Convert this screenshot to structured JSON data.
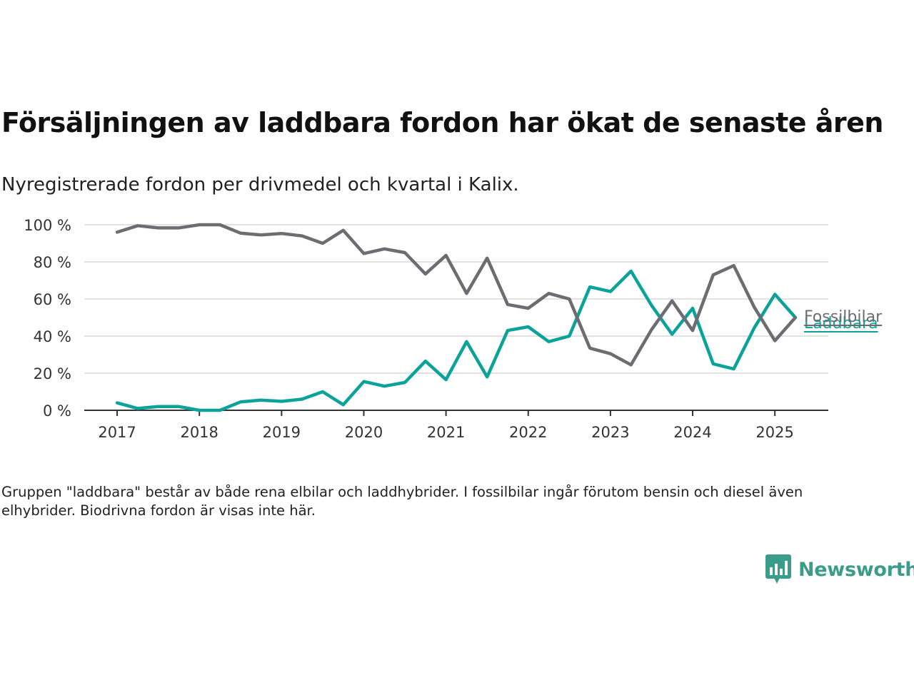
{
  "title": "Försäljningen av laddbara fordon har ökat de senaste åren",
  "subtitle": "Nyregistrerade fordon per drivmedel och kvartal i Kalix.",
  "note": "Gruppen \"laddbara\" består av både rena elbilar och laddhybrider. I fossilbilar ingår förutom bensin och diesel även elhybrider. Biodrivna fordon är visas inte här.",
  "brand": {
    "name": "Newsworthy",
    "icon": "newsworthy-logo-icon",
    "color": "#3c9c8c"
  },
  "chart_data": {
    "type": "line",
    "ylim": [
      0,
      100
    ],
    "yticks": [
      0,
      20,
      40,
      60,
      80,
      100
    ],
    "ytick_labels": [
      "0 %",
      "20 %",
      "40 %",
      "60 %",
      "80 %",
      "100 %"
    ],
    "xlim": [
      2016.6,
      2025.65
    ],
    "xticks": [
      2017,
      2018,
      2019,
      2020,
      2021,
      2022,
      2023,
      2024,
      2025
    ],
    "xtick_labels": [
      "2017",
      "2018",
      "2019",
      "2020",
      "2021",
      "2022",
      "2023",
      "2024",
      "2025"
    ],
    "x": [
      2017.0,
      2017.25,
      2017.5,
      2017.75,
      2018.0,
      2018.25,
      2018.5,
      2018.75,
      2019.0,
      2019.25,
      2019.5,
      2019.75,
      2020.0,
      2020.25,
      2020.5,
      2020.75,
      2021.0,
      2021.25,
      2021.5,
      2021.75,
      2022.0,
      2022.25,
      2022.5,
      2022.75,
      2023.0,
      2023.25,
      2023.5,
      2023.75,
      2024.0,
      2024.25,
      2024.5,
      2024.75,
      2025.0,
      2025.25
    ],
    "grid": true,
    "series": [
      {
        "name": "Fossilbilar",
        "color": "#6d6c73",
        "values": [
          96,
          99.5,
          98.3,
          98.3,
          100,
          100,
          95.5,
          94.5,
          95.3,
          94,
          90,
          97,
          84.5,
          87,
          85,
          73.5,
          83.5,
          63,
          82,
          57,
          55,
          63,
          60,
          33.5,
          30.5,
          24.5,
          43.5,
          59,
          43,
          73,
          78,
          55.5,
          37.5,
          50
        ]
      },
      {
        "name": "Laddbara",
        "color": "#0ba399",
        "values": [
          4,
          1,
          2,
          2,
          0,
          0,
          4.5,
          5.5,
          4.8,
          6,
          10,
          3,
          15.5,
          13,
          15,
          26.5,
          16.5,
          37,
          18,
          43,
          45,
          37,
          40,
          66.5,
          64,
          75,
          56.5,
          41,
          55,
          25,
          22.3,
          44.5,
          62.5,
          50
        ]
      }
    ]
  }
}
